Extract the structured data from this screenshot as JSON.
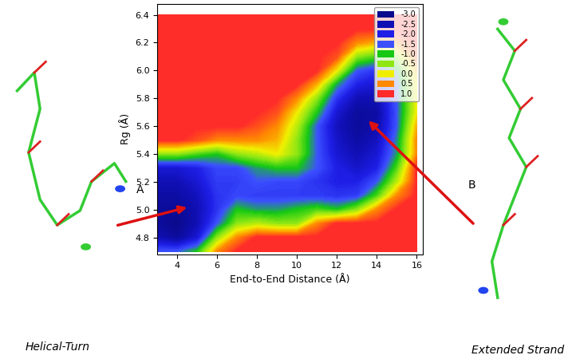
{
  "chart_data": {
    "type": "contour",
    "x_label": "End-to-End Distance (Å)",
    "y_label": "Rg (Å)",
    "xlim": [
      3.0,
      16.3
    ],
    "xticks": [
      4,
      6,
      8,
      10,
      12,
      14,
      16
    ],
    "ylim": [
      4.68,
      6.48
    ],
    "yticks": [
      4.8,
      5.0,
      5.2,
      5.4,
      5.6,
      5.8,
      6.0,
      6.2,
      6.4
    ],
    "x": [
      3,
      4,
      5,
      6,
      7,
      8,
      9,
      10,
      11,
      12,
      13,
      14,
      15,
      16
    ],
    "y": [
      4.7,
      4.8,
      4.9,
      5.0,
      5.1,
      5.2,
      5.3,
      5.4,
      5.5,
      5.6,
      5.7,
      5.8,
      5.9,
      6.0,
      6.1,
      6.2,
      6.3,
      6.4
    ],
    "cells": [
      [
        -1.5,
        -1.5,
        -1.0,
        0.5,
        1,
        1,
        1,
        1,
        1,
        1,
        1,
        1,
        1,
        1
      ],
      [
        -2.5,
        -2.8,
        -2.2,
        -0.5,
        0.5,
        1,
        1,
        1,
        1,
        1,
        1,
        1,
        1,
        1
      ],
      [
        -2.8,
        -3.0,
        -2.5,
        -1.5,
        -0.5,
        -0.3,
        -0.5,
        -0.5,
        0.5,
        1,
        1,
        1,
        1,
        1
      ],
      [
        -2.8,
        -2.9,
        -2.5,
        -1.8,
        -1.0,
        -1.2,
        -1.2,
        -1.0,
        -0.8,
        -1.0,
        -0.5,
        0.5,
        1,
        1
      ],
      [
        -2.7,
        -2.7,
        -2.4,
        -1.8,
        -1.6,
        -1.7,
        -1.7,
        -1.7,
        -1.7,
        -1.8,
        -1.7,
        -0.8,
        0.5,
        1
      ],
      [
        -2.5,
        -2.5,
        -2.2,
        -1.7,
        -1.7,
        -1.5,
        -1.6,
        -1.6,
        -1.8,
        -2.0,
        -2.0,
        -1.5,
        -0.3,
        1
      ],
      [
        -2.2,
        -2.2,
        -2.0,
        -1.6,
        -1.6,
        -1.2,
        -1.0,
        -1.0,
        -1.5,
        -2.0,
        -2.3,
        -2.0,
        -0.8,
        1
      ],
      [
        -0.5,
        -0.5,
        -0.8,
        -1.0,
        -0.5,
        -0.3,
        0.0,
        -0.5,
        -1.5,
        -2.2,
        -2.5,
        -2.2,
        -1.2,
        0.5
      ],
      [
        1,
        1,
        0.8,
        0.5,
        0.5,
        0.5,
        0.3,
        -0.5,
        -1.5,
        -2.3,
        -2.7,
        -2.4,
        -1.3,
        0.5
      ],
      [
        1,
        1,
        1,
        1,
        1,
        0.8,
        0.5,
        -0.3,
        -1.5,
        -2.4,
        -2.8,
        -2.6,
        -1.5,
        0.3
      ],
      [
        1,
        1,
        1,
        1,
        1,
        1,
        0.8,
        0.0,
        -1.0,
        -2.2,
        -2.8,
        -2.7,
        -1.5,
        0.0
      ],
      [
        1,
        1,
        1,
        1,
        1,
        1,
        1,
        0.5,
        -0.5,
        -1.8,
        -2.5,
        -2.5,
        -1.5,
        0.0
      ],
      [
        1,
        1,
        1,
        1,
        1,
        1,
        1,
        1,
        0.3,
        -1.2,
        -2.0,
        -2.2,
        -1.5,
        0.0
      ],
      [
        1,
        1,
        1,
        1,
        1,
        1,
        1,
        1,
        1,
        0.0,
        -1.5,
        -1.8,
        -1.2,
        0.3
      ],
      [
        1,
        1,
        1,
        1,
        1,
        1,
        1,
        1,
        1,
        0.8,
        -0.5,
        -0.8,
        -0.5,
        0.8
      ],
      [
        1,
        1,
        1,
        1,
        1,
        1,
        1,
        1,
        1,
        1,
        0.5,
        0.3,
        0.5,
        1
      ],
      [
        1,
        1,
        1,
        1,
        1,
        1,
        1,
        1,
        1,
        1,
        1,
        1,
        1,
        1
      ],
      [
        1,
        1,
        1,
        1,
        1,
        1,
        1,
        1,
        1,
        1,
        1,
        1,
        1,
        1
      ]
    ],
    "colorbar": {
      "range": [
        -3.0,
        1.0
      ],
      "ticks": [
        -3.0,
        -2.5,
        -2.0,
        -1.5,
        -1.0,
        -0.5,
        0.0,
        0.5,
        1.0
      ],
      "colors": [
        "#0a0a8c",
        "#0f0fb4",
        "#1e1ee6",
        "#3c50ff",
        "#14c814",
        "#8ce614",
        "#f0f000",
        "#ff8c00",
        "#ff2a2a"
      ]
    },
    "legend": "upper right",
    "annotations": [
      {
        "text": "A",
        "x": 4.6,
        "y": 5.02,
        "caption": "Helical-Turn"
      },
      {
        "text": "B",
        "x": 13.5,
        "y": 5.65,
        "caption": "Extended Strand"
      }
    ]
  }
}
